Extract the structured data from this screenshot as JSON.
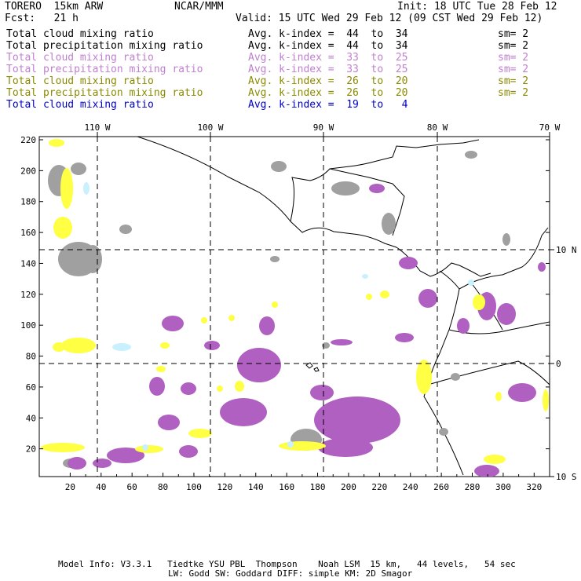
{
  "header": {
    "model": "TORERO  15km ARW",
    "center": "NCAR/MMM",
    "init": "Init: 18 UTC Tue 28 Feb 12",
    "fcst": "Fcst:   21 h",
    "valid": "Valid: 15 UTC Wed 29 Feb 12 (09 CST Wed 29 Feb 12)"
  },
  "legend": [
    {
      "field": "Total cloud mixing ratio",
      "k": "Avg. k-index =  44  to  34",
      "sm": "sm= 2",
      "color": "#000000"
    },
    {
      "field": "Total precipitation mixing ratio",
      "k": "Avg. k-index =  44  to  34",
      "sm": "sm= 2",
      "color": "#000000"
    },
    {
      "field": "Total cloud mixing ratio",
      "k": "Avg. k-index =  33  to  25",
      "sm": "sm= 2",
      "color": "#c080d0"
    },
    {
      "field": "Total precipitation mixing ratio",
      "k": "Avg. k-index =  33  to  25",
      "sm": "sm= 2",
      "color": "#c080d0"
    },
    {
      "field": "Total cloud mixing ratio",
      "k": "Avg. k-index =  26  to  20",
      "sm": "sm= 2",
      "color": "#8a8a00"
    },
    {
      "field": "Total precipitation mixing ratio",
      "k": "Avg. k-index =  26  to  20",
      "sm": "sm= 2",
      "color": "#8a8a00"
    },
    {
      "field": "Total cloud mixing ratio",
      "k": "Avg. k-index =  19  to   4",
      "sm": "",
      "color": "#0000cc"
    }
  ],
  "map": {
    "lon_labels": [
      "110 W",
      "100 W",
      "90 W",
      "80 W",
      "70 W"
    ],
    "lat_labels": [
      "10 N",
      "0",
      "10 S"
    ],
    "x_ticks": [
      "20",
      "40",
      "60",
      "80",
      "100",
      "120",
      "140",
      "160",
      "180",
      "200",
      "220",
      "240",
      "260",
      "280",
      "300",
      "320"
    ],
    "y_ticks": [
      "220",
      "200",
      "180",
      "160",
      "140",
      "120",
      "100",
      "80",
      "60",
      "40",
      "20"
    ],
    "colors": {
      "gray": "#a0a0a0",
      "purple": "#b060c0",
      "yellow": "#ffff44",
      "lightblue": "#c8f0ff"
    }
  },
  "footer": {
    "line1": "Model Info: V3.3.1   Tiedtke YSU PBL  Thompson    Noah LSM  15 km,   44 levels,   54 sec",
    "line2": "LW: Godd SW: Goddard DIFF: simple KM: 2D Smagor"
  }
}
